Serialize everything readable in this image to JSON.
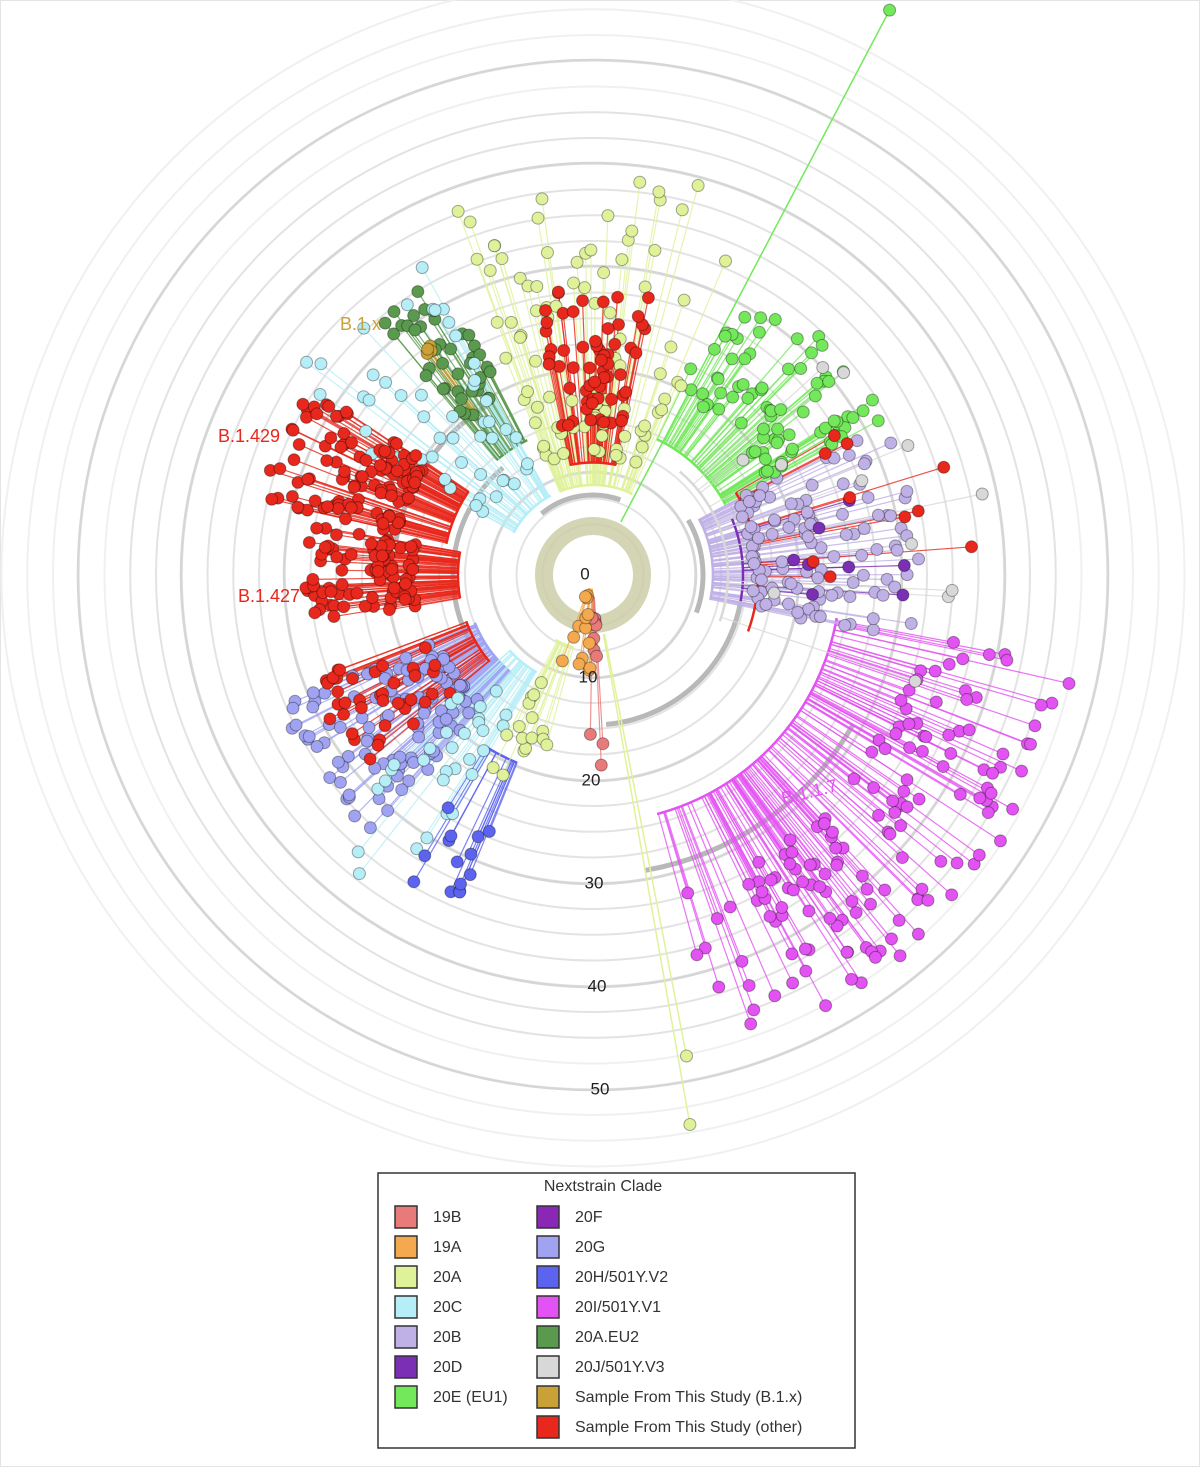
{
  "scale": {
    "ticks": [
      0,
      10,
      20,
      30,
      40,
      50
    ]
  },
  "clade_labels": [
    {
      "text": "B.1.x",
      "color": "#c9a136"
    },
    {
      "text": "B.1.429",
      "color": "#e8281c"
    },
    {
      "text": "B.1.427",
      "color": "#e8281c"
    },
    {
      "text": "B.1.1.7",
      "color": "#e352f2"
    }
  ],
  "legend": {
    "title": "Nextstrain Clade",
    "entries": [
      {
        "label": "19B",
        "color": "#e87a7a"
      },
      {
        "label": "19A",
        "color": "#f5a94e"
      },
      {
        "label": "20A",
        "color": "#dff29a"
      },
      {
        "label": "20C",
        "color": "#b5eef7"
      },
      {
        "label": "20B",
        "color": "#bfb0e6"
      },
      {
        "label": "20D",
        "color": "#7a2fb5"
      },
      {
        "label": "20E (EU1)",
        "color": "#72e85a"
      },
      {
        "label": "20F",
        "color": "#8a28b5"
      },
      {
        "label": "20G",
        "color": "#9fa3f2"
      },
      {
        "label": "20H/501Y.V2",
        "color": "#5b63ef"
      },
      {
        "label": "20I/501Y.V1",
        "color": "#e352f2"
      },
      {
        "label": "20A.EU2",
        "color": "#5a9a4e"
      },
      {
        "label": "20J/501Y.V3",
        "color": "#d8d8d8"
      },
      {
        "label": "Sample From This Study (B.1.x)",
        "color": "#c9a136"
      },
      {
        "label": "Sample From This Study (other)",
        "color": "#e8281c"
      }
    ]
  }
}
